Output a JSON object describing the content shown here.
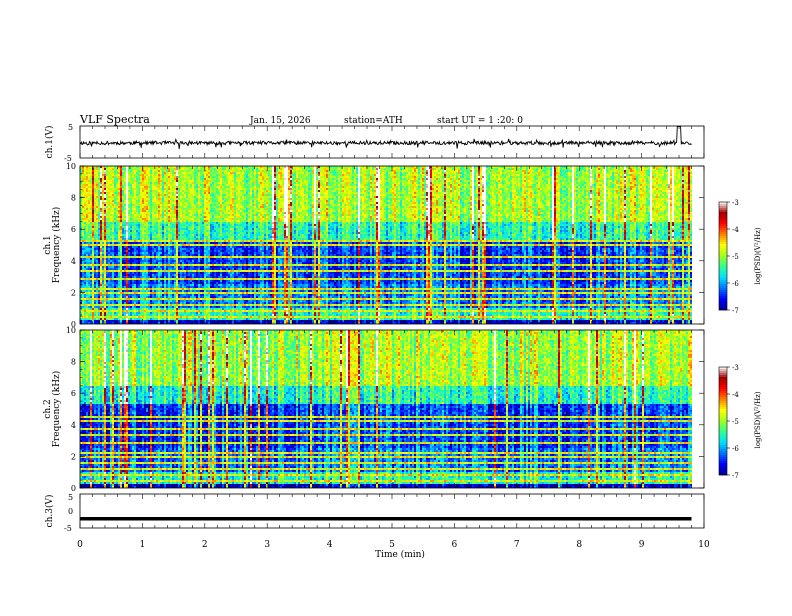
{
  "header": {
    "title": "VLF  Spectra",
    "date": "Jan. 15, 2026",
    "station": "station=ATH",
    "start": "start  UT  =   1 :20: 0"
  },
  "chart_data": [
    {
      "type": "line",
      "panel": "ch1-waveform",
      "ylabel": "ch.1(V)",
      "ylim": [
        -5,
        5
      ],
      "yticks": [
        "5",
        "-5"
      ],
      "xlim": [
        0,
        10
      ],
      "baseline_v": -0.3,
      "end_x_min": 9.8
    },
    {
      "type": "heatmap",
      "panel": "ch1-spectrogram",
      "ylabel": "ch.1",
      "ylabel2": "Frequency  (kHz)",
      "ylim": [
        0,
        10
      ],
      "yticks": [
        "0",
        "2",
        "4",
        "6",
        "8",
        "10"
      ],
      "xlim": [
        0,
        10
      ],
      "end_x_min": 9.8,
      "tones_khz": [
        0.4,
        0.8,
        1.2,
        1.6,
        2.0,
        2.2,
        2.8,
        3.4,
        3.7,
        4.3,
        5.0,
        5.2
      ],
      "colorbar": {
        "label": "log(PSD)(V²/Hz)",
        "range": [
          -7,
          -3
        ],
        "ticks": [
          "-3",
          "-4",
          "-5",
          "-6",
          "-7"
        ]
      }
    },
    {
      "type": "heatmap",
      "panel": "ch2-spectrogram",
      "ylabel": "ch.2",
      "ylabel2": "Frequency  (kHz)",
      "ylim": [
        0,
        10
      ],
      "yticks": [
        "0",
        "2",
        "4",
        "6",
        "8",
        "10"
      ],
      "xlim": [
        0,
        10
      ],
      "end_x_min": 9.8,
      "tones_khz": [
        0.4,
        0.8,
        1.2,
        1.6,
        2.0,
        2.2,
        2.8,
        3.4,
        3.7,
        4.3,
        4.5
      ],
      "colorbar": {
        "label": "log(PSD)(V²/Hz)",
        "range": [
          -7,
          -3
        ],
        "ticks": [
          "-3",
          "-4",
          "-5",
          "-6",
          "-7"
        ]
      }
    },
    {
      "type": "line",
      "panel": "ch3-waveform",
      "ylabel": "ch.3(V)",
      "ylim": [
        -5,
        5
      ],
      "yticks": [
        "5",
        "0",
        "-5"
      ],
      "xlim": [
        0,
        10
      ],
      "constant_v": -2.3,
      "end_x_min": 9.8
    }
  ],
  "xaxis": {
    "label": "Time  (min)",
    "ticks": [
      "0",
      "1",
      "2",
      "3",
      "4",
      "5",
      "6",
      "7",
      "8",
      "9",
      "10"
    ]
  },
  "colors": {
    "colormap": [
      "#000090",
      "#0000ff",
      "#0070ff",
      "#00e0ff",
      "#30ff90",
      "#a0ff20",
      "#ffff00",
      "#ff8000",
      "#ff0000",
      "#a00000",
      "#ffffff"
    ]
  }
}
